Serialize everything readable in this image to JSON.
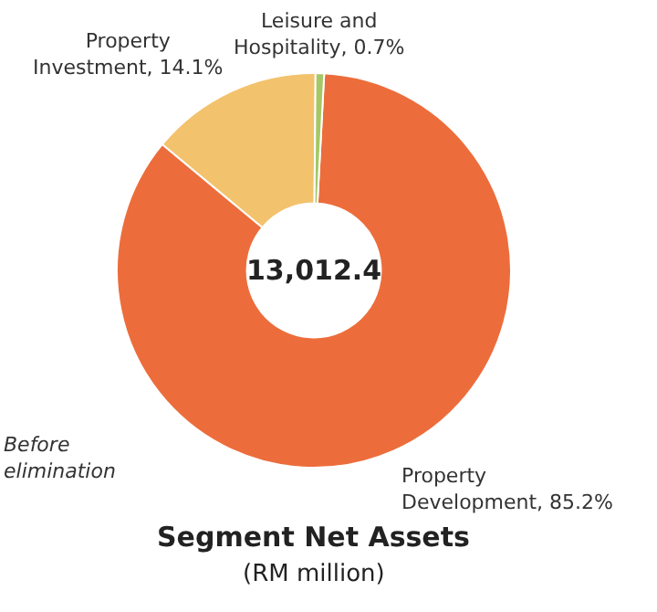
{
  "chart_data": {
    "type": "donut",
    "title": "Segment Net Assets",
    "subtitle": "(RM million)",
    "categories": [
      "Property Development",
      "Property Investment",
      "Leisure and Hospitality"
    ],
    "values": [
      85.2,
      14.1,
      0.7
    ],
    "value_labels": [
      "85.2%",
      "14.1%",
      "0.7%"
    ],
    "colors": [
      "#ec6d3b",
      "#f3c26c",
      "#a6c766"
    ],
    "legend": false,
    "annotations": [
      "13,012.4",
      "Before elimination"
    ]
  }
}
